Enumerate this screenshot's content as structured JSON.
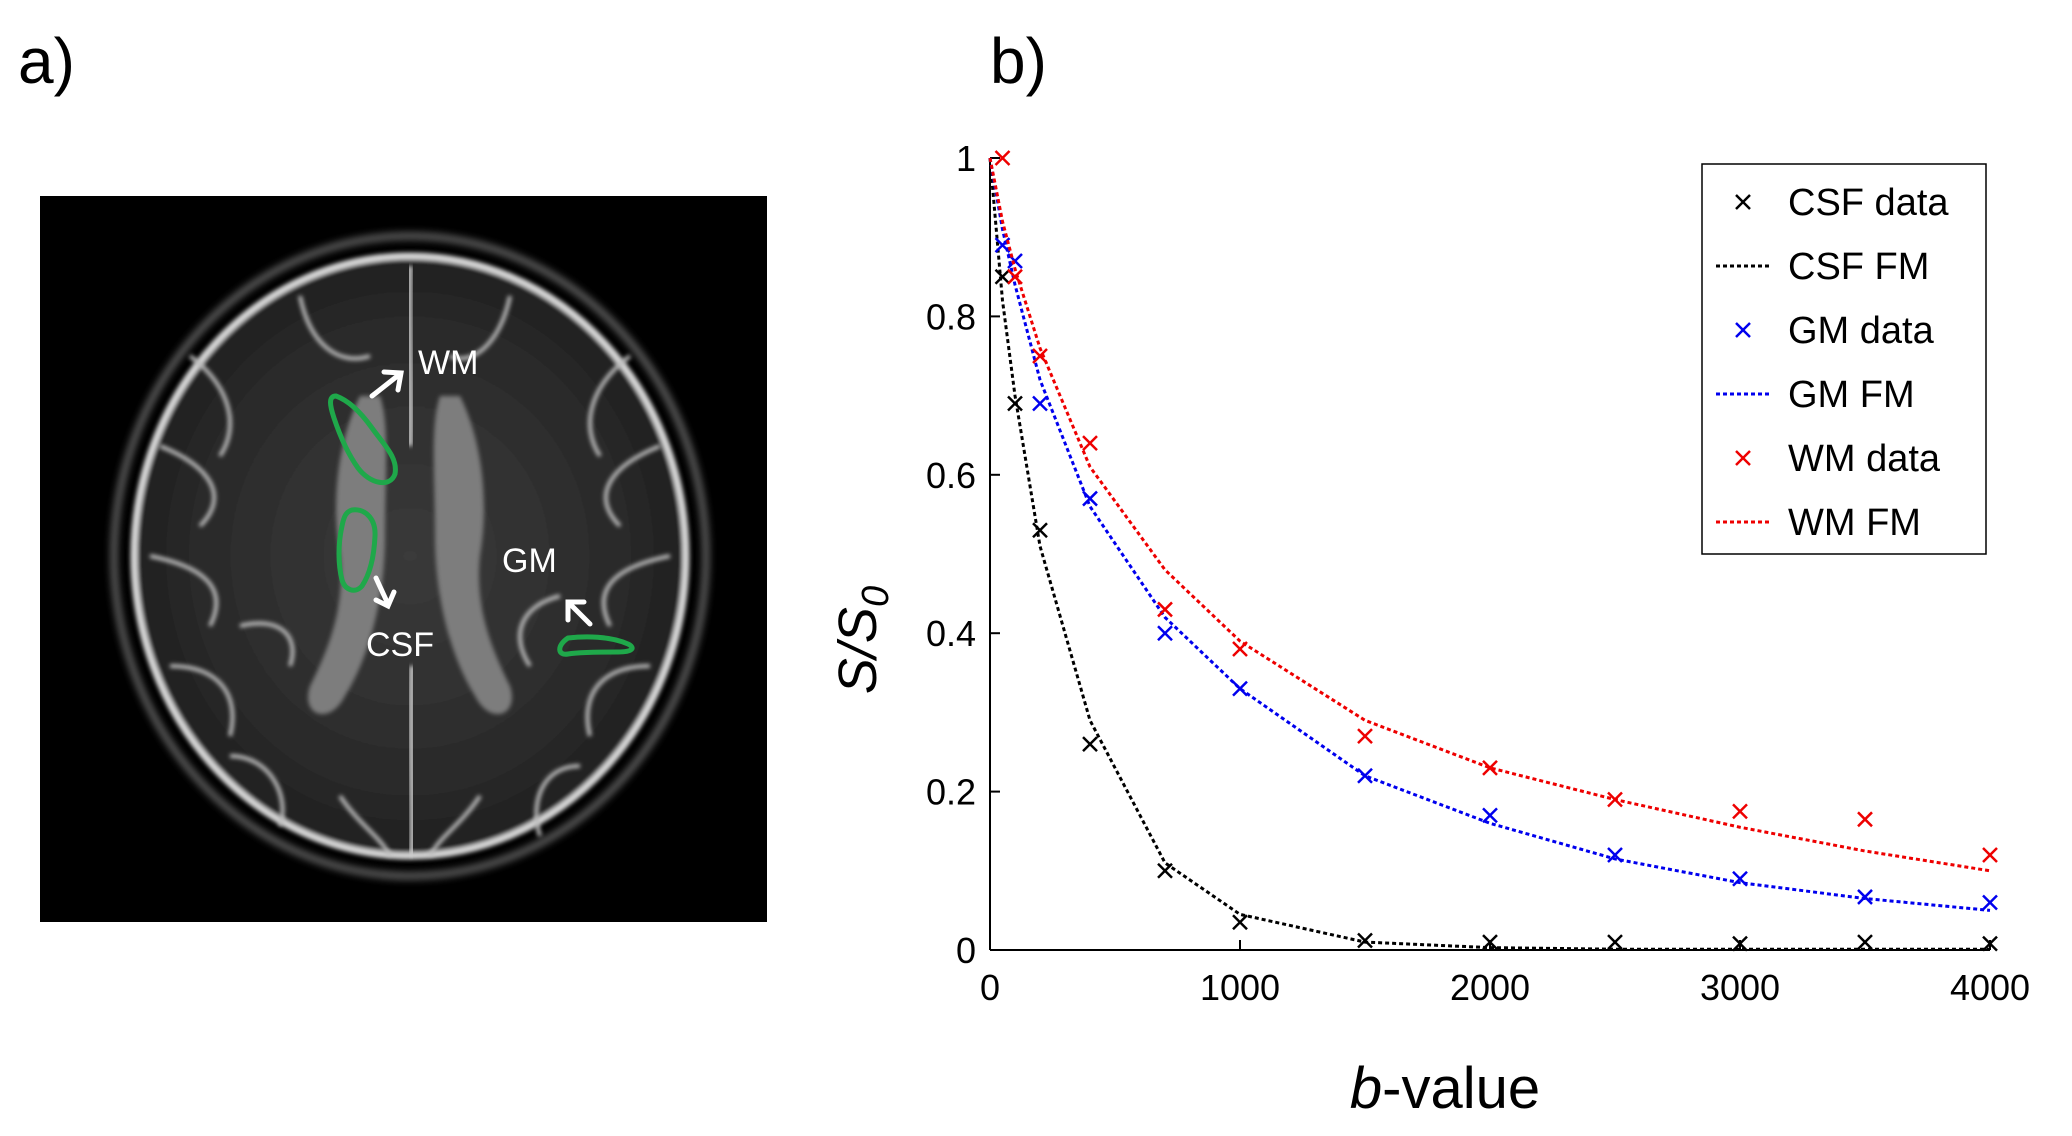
{
  "panel_a": {
    "label": "a)",
    "annotations": [
      "WM",
      "CSF",
      "GM"
    ],
    "roi_color": "#1fa84a",
    "arrow_color": "#ffffff"
  },
  "panel_b": {
    "label": "b)"
  },
  "chart_data": {
    "type": "scatter",
    "xlabel_italic": "b",
    "xlabel_rest": "-value",
    "ylabel_main": "S/S",
    "ylabel_sub": "0",
    "xlim": [
      0,
      4000
    ],
    "ylim": [
      0,
      1
    ],
    "xticks": [
      0,
      1000,
      2000,
      3000,
      4000
    ],
    "xtick_labels": [
      "0",
      "1000",
      "2000",
      "3000",
      "4000"
    ],
    "yticks": [
      0,
      0.2,
      0.4,
      0.6,
      0.8,
      1
    ],
    "ytick_labels": [
      "0",
      "0.2",
      "0.4",
      "0.6",
      "0.8",
      "1"
    ],
    "legend_position": "top-right",
    "series": [
      {
        "name": "CSF data",
        "kind": "marker",
        "color": "#000000",
        "x": [
          50,
          100,
          200,
          400,
          700,
          1000,
          1500,
          2000,
          2500,
          3000,
          3500,
          4000
        ],
        "y": [
          0.85,
          0.69,
          0.53,
          0.26,
          0.1,
          0.035,
          0.012,
          0.01,
          0.01,
          0.008,
          0.01,
          0.008
        ]
      },
      {
        "name": "CSF FM",
        "kind": "line",
        "color": "#000000",
        "x": [
          0,
          50,
          100,
          200,
          400,
          700,
          1000,
          1500,
          2000,
          2500,
          3000,
          3500,
          4000
        ],
        "y": [
          1.0,
          0.82,
          0.7,
          0.51,
          0.29,
          0.11,
          0.045,
          0.01,
          0.003,
          0.001,
          0.001,
          0.001,
          0.001
        ]
      },
      {
        "name": "GM data",
        "kind": "marker",
        "color": "#0000ee",
        "x": [
          50,
          100,
          200,
          400,
          700,
          1000,
          1500,
          2000,
          2500,
          3000,
          3500,
          4000
        ],
        "y": [
          0.89,
          0.87,
          0.69,
          0.57,
          0.4,
          0.33,
          0.22,
          0.17,
          0.12,
          0.09,
          0.067,
          0.06
        ]
      },
      {
        "name": "GM FM",
        "kind": "line",
        "color": "#0000ee",
        "x": [
          0,
          50,
          100,
          200,
          400,
          700,
          1000,
          1500,
          2000,
          2500,
          3000,
          3500,
          4000
        ],
        "y": [
          1.0,
          0.91,
          0.84,
          0.72,
          0.56,
          0.42,
          0.33,
          0.22,
          0.16,
          0.115,
          0.085,
          0.065,
          0.05
        ]
      },
      {
        "name": "WM data",
        "kind": "marker",
        "color": "#ee0000",
        "x": [
          50,
          100,
          200,
          400,
          700,
          1000,
          1500,
          2000,
          2500,
          3000,
          3500,
          4000
        ],
        "y": [
          1.0,
          0.85,
          0.75,
          0.64,
          0.43,
          0.38,
          0.27,
          0.23,
          0.19,
          0.175,
          0.165,
          0.12
        ]
      },
      {
        "name": "WM FM",
        "kind": "line",
        "color": "#ee0000",
        "x": [
          0,
          50,
          100,
          200,
          400,
          700,
          1000,
          1500,
          2000,
          2500,
          3000,
          3500,
          4000
        ],
        "y": [
          1.0,
          0.92,
          0.86,
          0.76,
          0.61,
          0.48,
          0.39,
          0.29,
          0.23,
          0.19,
          0.155,
          0.125,
          0.1
        ]
      }
    ]
  }
}
